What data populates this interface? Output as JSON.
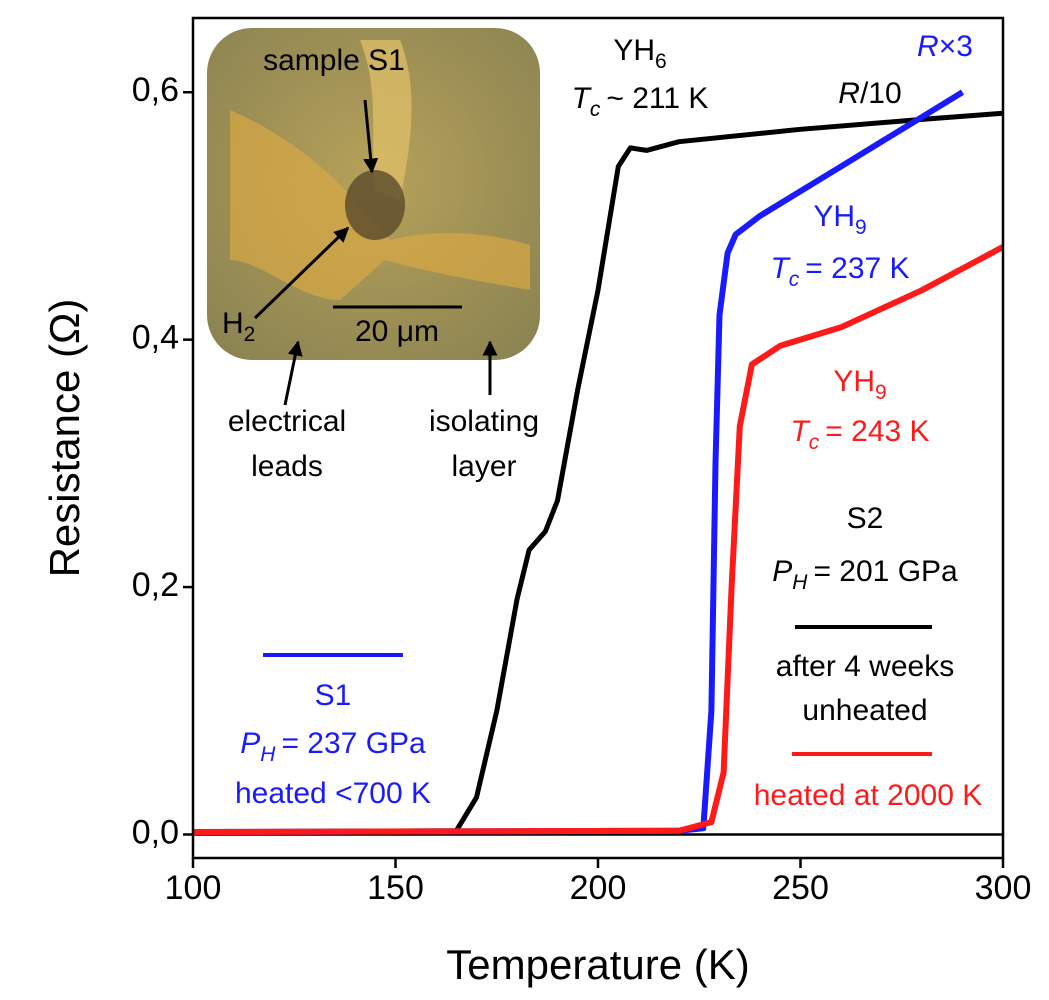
{
  "chart_data": {
    "type": "line",
    "xlabel": "Temperature (K)",
    "ylabel": "Resistance (Ω)",
    "xlim": [
      100,
      300
    ],
    "xticks": [
      100,
      150,
      200,
      250,
      300
    ],
    "ylim": [
      -0.019,
      0.66
    ],
    "yticks": [
      {
        "value": 0,
        "label": "0,0"
      },
      {
        "value": 0.2,
        "label": "0,2"
      },
      {
        "value": 0.4,
        "label": "0,4"
      },
      {
        "value": 0.6,
        "label": "0,6"
      }
    ],
    "series": [
      {
        "name": "S2",
        "color": "#000000",
        "x": [
          100,
          165,
          170,
          175,
          180,
          183,
          187,
          190,
          195,
          200,
          205,
          208,
          212,
          220,
          250,
          280,
          300
        ],
        "values": [
          0.002,
          0.003,
          0.03,
          0.1,
          0.19,
          0.23,
          0.245,
          0.27,
          0.36,
          0.44,
          0.54,
          0.555,
          0.553,
          0.56,
          0.57,
          0.578,
          0.583
        ]
      },
      {
        "name": "S1",
        "color": "#1a1aff",
        "x": [
          100,
          220,
          226,
          228,
          229,
          230,
          232,
          234,
          240,
          250,
          260,
          270,
          280,
          290
        ],
        "values": [
          0.002,
          0.003,
          0.005,
          0.1,
          0.3,
          0.42,
          0.47,
          0.485,
          0.5,
          0.52,
          0.54,
          0.56,
          0.58,
          0.6
        ]
      },
      {
        "name": "heated at 2000 K",
        "color": "#ff1a1a",
        "x": [
          100,
          220,
          228,
          231,
          233,
          235,
          238,
          245,
          260,
          280,
          300
        ],
        "values": [
          0.002,
          0.003,
          0.01,
          0.05,
          0.2,
          0.33,
          0.38,
          0.395,
          0.41,
          0.44,
          0.475
        ]
      }
    ],
    "annotations": {
      "yh6": {
        "formula": "YH",
        "sub": "6",
        "tc": "T",
        "tc_sub": "c",
        "tc_text": "~ 211 K"
      },
      "scale_blue": {
        "symbol": "R",
        "text": "×3"
      },
      "scale_black": {
        "symbol": "R",
        "text": "/10"
      },
      "yh9_blue": {
        "formula": "YH",
        "sub": "9",
        "tc": "T",
        "tc_sub": "c",
        "tc_text": "= 237 K"
      },
      "yh9_red": {
        "formula": "YH",
        "sub": "9",
        "tc": "T",
        "tc_sub": "c",
        "tc_text": "= 243 K"
      },
      "s2": {
        "symbol": "P",
        "sub": "H",
        "text": "= 201 GPa",
        "lines": [
          "after 4 weeks",
          "unheated"
        ]
      },
      "s1": {
        "symbol": "P",
        "sub": "H",
        "text": "= 237 GPa",
        "lines": [
          "heated <700 K"
        ]
      }
    },
    "inset": {
      "sample": "sample S1",
      "gas": "H",
      "gas_sub": "2",
      "scale": "20 μm",
      "leads": [
        "electrical",
        "leads"
      ],
      "layer": [
        "isolating",
        "layer"
      ]
    }
  }
}
